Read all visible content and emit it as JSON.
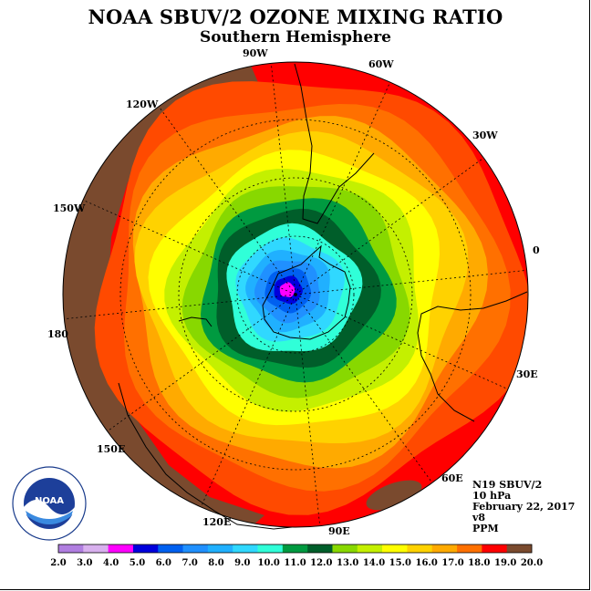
{
  "title": "NOAA SBUV/2 OZONE MIXING RATIO",
  "subtitle": "Southern Hemisphere",
  "longitude_labels": [
    "90W",
    "60W",
    "30W",
    "0",
    "30E",
    "60E",
    "90E",
    "120E",
    "150E",
    "180",
    "150W",
    "120W"
  ],
  "info": {
    "instrument": "N19 SBUV/2",
    "level": "10 hPa",
    "date": "February 22, 2017",
    "version": "v8",
    "units": "PPM"
  },
  "logo": {
    "text": "NOAA",
    "ring_text": "NATIONAL OCEANIC AND ATMOSPHERIC ADMINISTRATION · U.S. DEPARTMENT OF COMMERCE"
  },
  "colorbar": {
    "ticks": [
      "2.0",
      "3.0",
      "4.0",
      "5.0",
      "6.0",
      "7.0",
      "8.0",
      "9.0",
      "10.0",
      "11.0",
      "12.0",
      "13.0",
      "14.0",
      "15.0",
      "16.0",
      "17.0",
      "18.0",
      "19.0",
      "20.0"
    ],
    "colors": [
      "#b07ee0",
      "#d8b0ee",
      "#ff00ff",
      "#0000dc",
      "#0060f0",
      "#2090ff",
      "#20b0ff",
      "#30d8ff",
      "#30ffd8",
      "#009a40",
      "#005e2a",
      "#88d800",
      "#c4f000",
      "#ffff00",
      "#ffd200",
      "#ffaa00",
      "#ff7000",
      "#ff0000",
      "#7a4a2e"
    ]
  },
  "map": {
    "field_colors": [
      "#7a4a2e",
      "#ff0000",
      "#ff4a00",
      "#ff7000",
      "#ffaa00",
      "#ffd200",
      "#ffff00",
      "#c4f000",
      "#88d800",
      "#009a40",
      "#005e2a",
      "#30ffd8",
      "#30d8ff",
      "#20b0ff",
      "#2090ff",
      "#0060f0",
      "#0000dc",
      "#ff00ff"
    ]
  }
}
